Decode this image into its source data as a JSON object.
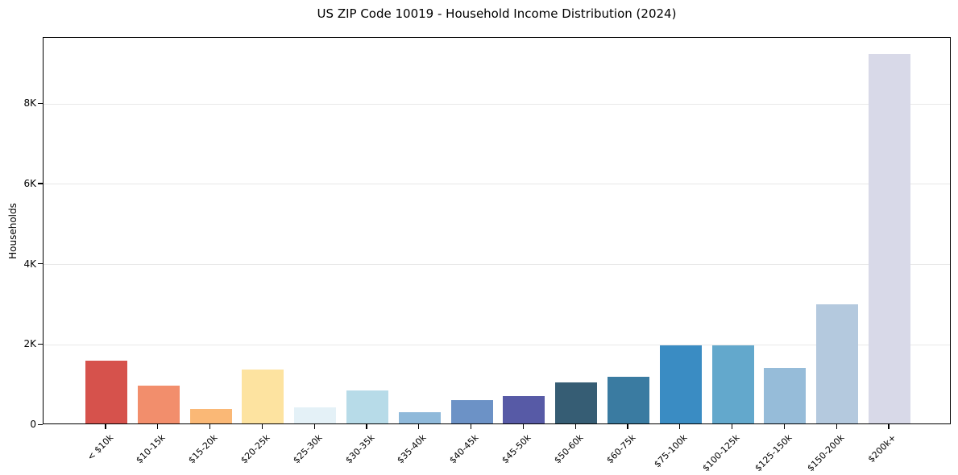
{
  "chart_data": {
    "type": "bar",
    "title": "US ZIP Code 10019 - Household Income Distribution (2024)",
    "xlabel": "",
    "ylabel": "Households",
    "categories": [
      "< $10k",
      "$10-15k",
      "$15-20k",
      "$20-25k",
      "$25-30k",
      "$30-35k",
      "$35-40k",
      "$40-45k",
      "$45-50k",
      "$50-60k",
      "$60-75k",
      "$75-100k",
      "$100-125k",
      "$125-150k",
      "$150-200k",
      "$200k+"
    ],
    "values": [
      1560,
      935,
      360,
      1350,
      395,
      830,
      275,
      575,
      690,
      1020,
      1165,
      1950,
      1950,
      1385,
      2975,
      9200
    ],
    "bar_colors": [
      "#d6524c",
      "#f28e6c",
      "#fab876",
      "#fde3a0",
      "#e4f1f7",
      "#b7dbe8",
      "#8fb9da",
      "#6c92c6",
      "#575aa6",
      "#365d74",
      "#3a7ba1",
      "#3a8cc3",
      "#63a8cc",
      "#96bcd9",
      "#b4c9de",
      "#d8d9e8"
    ],
    "ylim": [
      0,
      9650
    ],
    "yticks": [
      {
        "value": 0,
        "label": "0"
      },
      {
        "value": 2000,
        "label": "2K"
      },
      {
        "value": 4000,
        "label": "4K"
      },
      {
        "value": 6000,
        "label": "6K"
      },
      {
        "value": 8000,
        "label": "8K"
      }
    ],
    "grid": "horizontal",
    "legend": "none",
    "colors": {
      "background": "#ffffff",
      "spine": "#000000",
      "gridline": "#e8e8e8",
      "text": "#000000"
    }
  }
}
